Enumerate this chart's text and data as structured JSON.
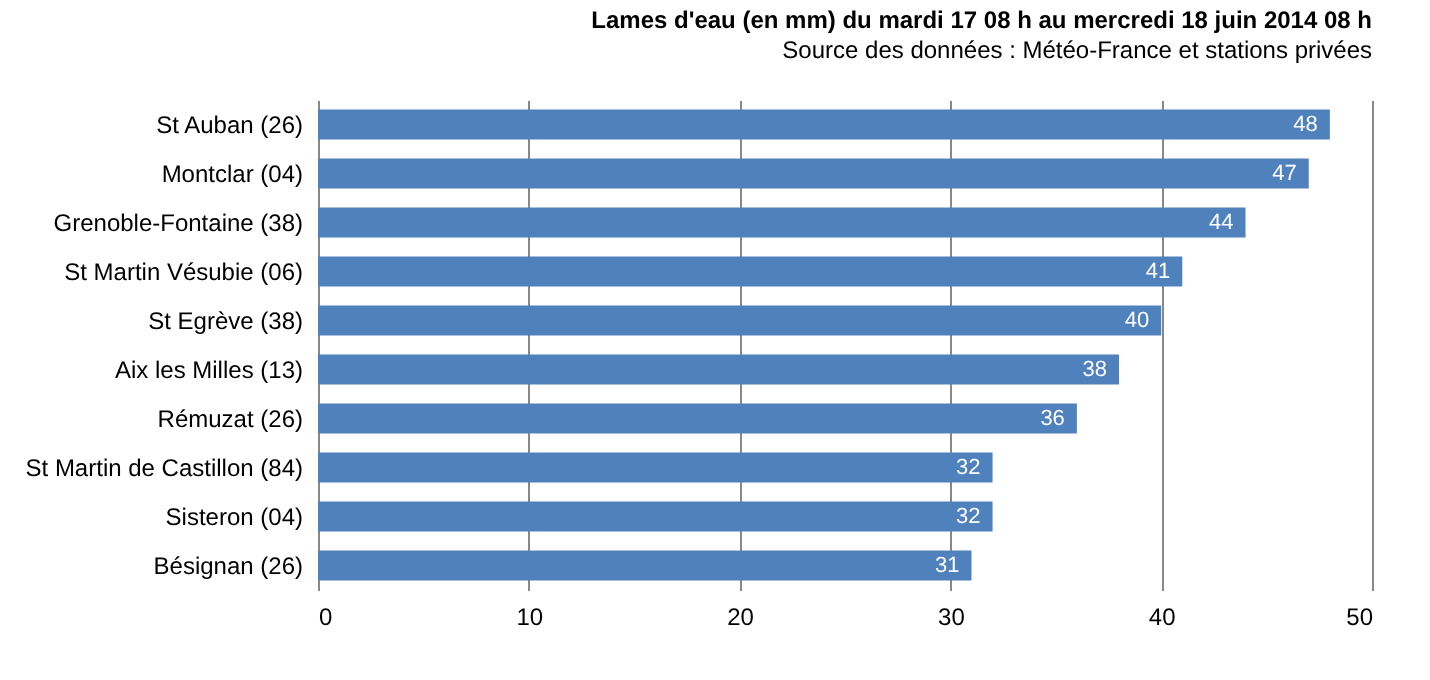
{
  "chart_data": {
    "type": "bar",
    "orientation": "horizontal",
    "title": "Lames d'eau (en mm) du mardi 17 08 h au mercredi 18 juin 2014 08 h",
    "subtitle": "Source des données : Météo-France et stations  privées",
    "categories": [
      "St Auban (26)",
      "Montclar (04)",
      "Grenoble-Fontaine (38)",
      "St Martin  Vésubie (06)",
      "St Egrève (38)",
      "Aix les Milles (13)",
      "Rémuzat (26)",
      "St Martin de Castillon  (84)",
      "Sisteron (04)",
      "Bésignan (26)"
    ],
    "values": [
      48,
      47,
      44,
      41,
      40,
      38,
      36,
      32,
      32,
      31
    ],
    "color": "#4f81bd",
    "xlim": [
      0,
      50
    ],
    "xticks": [
      0,
      10,
      20,
      30,
      40,
      50
    ],
    "grid": "x",
    "data_labels": true
  }
}
